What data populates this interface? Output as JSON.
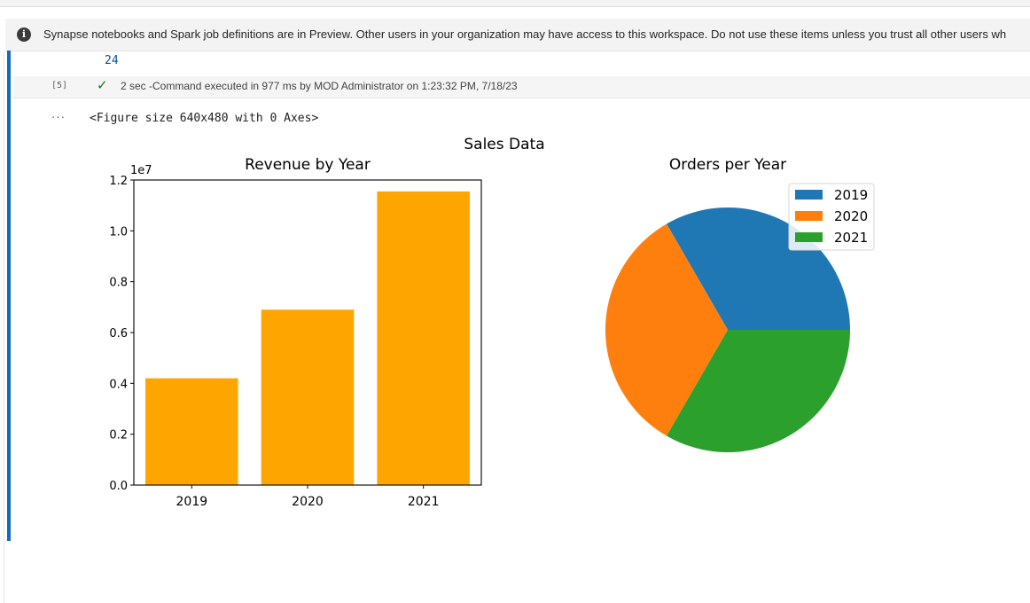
{
  "banner": {
    "icon": "info-icon",
    "text": "Synapse notebooks and Spark job definitions are in Preview. Other users in your organization may have access to this workspace. Do not use these items unless you trust all other users wh"
  },
  "cell": {
    "output_number": "24",
    "execution_count": "[5]",
    "status_icon": "check-icon",
    "status_text": "2 sec -Command executed in 977 ms by MOD Administrator on 1:23:32 PM, 7/18/23",
    "more_icon": "more-icon",
    "more_text": "···",
    "output_text": "<Figure size 640x480 with 0 Axes>"
  },
  "figure": {
    "suptitle": "Sales Data"
  },
  "chart_data": [
    {
      "type": "bar",
      "title": "Revenue by Year",
      "categories": [
        "2019",
        "2020",
        "2021"
      ],
      "values": [
        4200000,
        6900000,
        11550000
      ],
      "scale_label": "1e7",
      "ylim": [
        0,
        12000000
      ],
      "yticks": [
        0,
        2000000,
        4000000,
        6000000,
        8000000,
        10000000,
        12000000
      ],
      "ytick_labels": [
        "0.0",
        "0.2",
        "0.4",
        "0.6",
        "0.8",
        "1.0",
        "1.2"
      ],
      "xlabel": "",
      "ylabel": "",
      "color": "#ffa500",
      "grid": false
    },
    {
      "type": "pie",
      "title": "Orders per Year",
      "labels": [
        "2019",
        "2020",
        "2021"
      ],
      "values": [
        1,
        1,
        1
      ],
      "colors": [
        "#1f77b4",
        "#ff7f0e",
        "#2ca02c"
      ],
      "legend": "top-right"
    }
  ]
}
